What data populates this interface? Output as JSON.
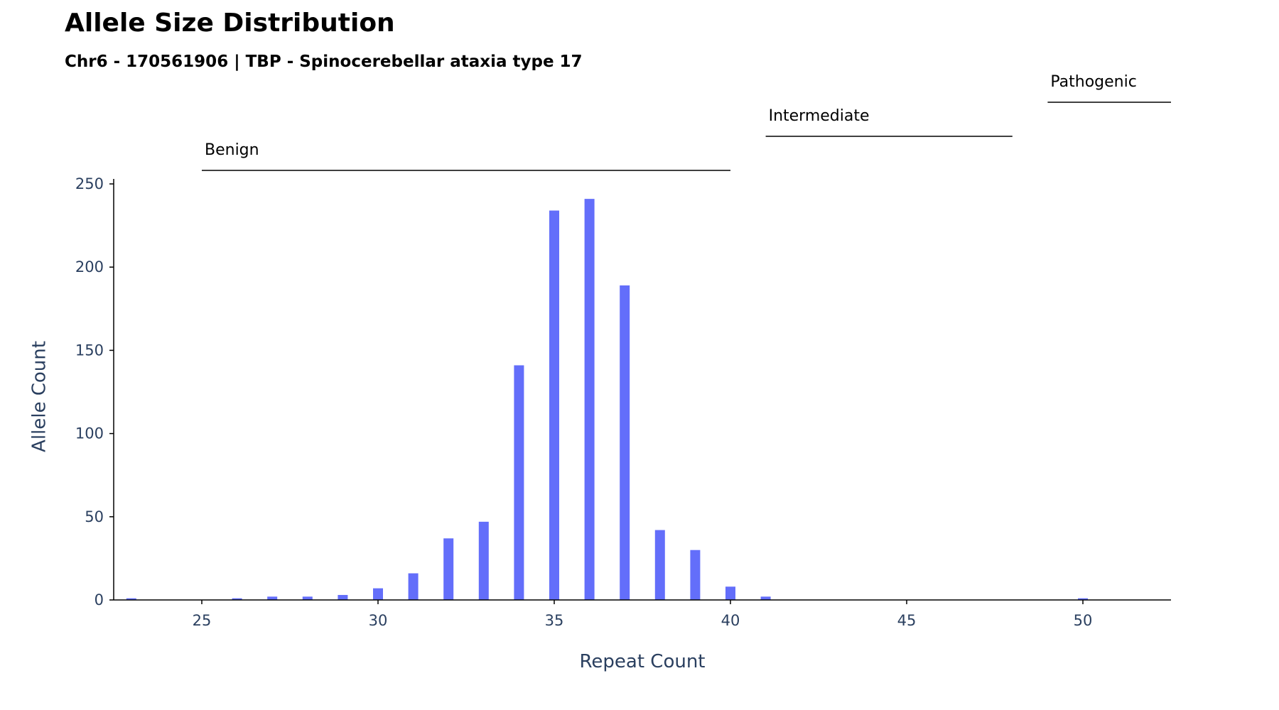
{
  "title": "Allele Size Distribution",
  "subtitle": "Chr6 - 170561906 | TBP - Spinocerebellar ataxia type 17",
  "chart_data": {
    "type": "bar",
    "title": "Allele Size Distribution",
    "subtitle": "Chr6 - 170561906 | TBP - Spinocerebellar ataxia type 17",
    "xlabel": "Repeat Count",
    "ylabel": "Allele Count",
    "xlim": [
      22.5,
      52.5
    ],
    "ylim": [
      0,
      253
    ],
    "x_ticks": [
      25,
      30,
      35,
      40,
      45,
      50
    ],
    "y_ticks": [
      0,
      50,
      100,
      150,
      200,
      250
    ],
    "grid": false,
    "bar_color": "#636efa",
    "x": [
      23,
      26,
      27,
      28,
      29,
      30,
      31,
      32,
      33,
      34,
      35,
      36,
      37,
      38,
      39,
      40,
      41,
      50
    ],
    "values": [
      1,
      1,
      2,
      2,
      3,
      7,
      16,
      37,
      47,
      141,
      234,
      241,
      189,
      42,
      30,
      8,
      2,
      1
    ],
    "regions": [
      {
        "label": "Benign",
        "start": 25,
        "end": 40
      },
      {
        "label": "Intermediate",
        "start": 41,
        "end": 48
      },
      {
        "label": "Pathogenic",
        "start": 49,
        "end": 52.5
      }
    ]
  }
}
